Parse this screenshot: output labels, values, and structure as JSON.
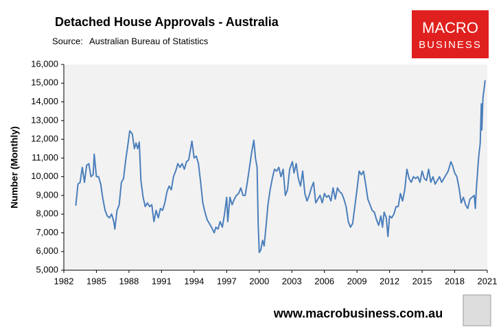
{
  "chart_data": {
    "type": "line",
    "title": "Detached House Approvals - Australia",
    "source_label": "Source:",
    "source": "Australian Bureau of Statistics",
    "brand": [
      "MACRO",
      "BUSINESS"
    ],
    "website": "www.macrobusiness.com.au",
    "y_label": "Number (Monthly)",
    "xlim": [
      1982,
      2021
    ],
    "xticks": [
      1982,
      1985,
      1988,
      1991,
      1994,
      1997,
      2000,
      2003,
      2006,
      2009,
      2012,
      2015,
      2018,
      2021
    ],
    "ylim": [
      5000,
      16000
    ],
    "yticks": [
      {
        "value": 5000,
        "label": "5,000"
      },
      {
        "value": 6000,
        "label": "6,000"
      },
      {
        "value": 7000,
        "label": "7,000"
      },
      {
        "value": 8000,
        "label": "8,000"
      },
      {
        "value": 9000,
        "label": "9,000"
      },
      {
        "value": 10000,
        "label": "10,000"
      },
      {
        "value": 11000,
        "label": "11,000"
      },
      {
        "value": 12000,
        "label": "12,000"
      },
      {
        "value": 13000,
        "label": "13,000"
      },
      {
        "value": 14000,
        "label": "14,000"
      },
      {
        "value": 15000,
        "label": "15,000"
      },
      {
        "value": 16000,
        "label": "16,000"
      }
    ],
    "grid": false,
    "x": [
      1983.1,
      1983.3,
      1983.5,
      1983.7,
      1983.9,
      1984.1,
      1984.3,
      1984.5,
      1984.7,
      1984.8,
      1985.0,
      1985.2,
      1985.4,
      1985.6,
      1985.8,
      1986.0,
      1986.2,
      1986.4,
      1986.6,
      1986.7,
      1986.9,
      1987.1,
      1987.3,
      1987.5,
      1987.7,
      1987.9,
      1988.07,
      1988.3,
      1988.5,
      1988.65,
      1988.8,
      1988.95,
      1989.1,
      1989.3,
      1989.5,
      1989.7,
      1989.9,
      1990.1,
      1990.3,
      1990.5,
      1990.7,
      1990.9,
      1991.1,
      1991.3,
      1991.5,
      1991.7,
      1991.9,
      1992.1,
      1992.3,
      1992.5,
      1992.7,
      1992.9,
      1993.1,
      1993.3,
      1993.5,
      1993.8,
      1994.0,
      1994.2,
      1994.4,
      1994.6,
      1994.8,
      1995.0,
      1995.2,
      1995.4,
      1995.6,
      1995.85,
      1996.0,
      1996.2,
      1996.4,
      1996.6,
      1996.8,
      1997.0,
      1997.1,
      1997.3,
      1997.5,
      1997.7,
      1997.9,
      1998.1,
      1998.3,
      1998.5,
      1998.7,
      1998.9,
      1999.1,
      1999.3,
      1999.5,
      1999.65,
      1999.8,
      1999.9,
      2000.0,
      2000.15,
      2000.3,
      2000.45,
      2000.6,
      2000.8,
      2001.0,
      2001.2,
      2001.4,
      2001.6,
      2001.8,
      2002.0,
      2002.2,
      2002.4,
      2002.6,
      2002.8,
      2003.05,
      2003.2,
      2003.4,
      2003.6,
      2003.8,
      2004.0,
      2004.2,
      2004.4,
      2004.6,
      2004.8,
      2005.0,
      2005.2,
      2005.4,
      2005.6,
      2005.8,
      2006.0,
      2006.2,
      2006.4,
      2006.6,
      2006.8,
      2007.0,
      2007.2,
      2007.4,
      2007.6,
      2007.8,
      2008.0,
      2008.2,
      2008.4,
      2008.6,
      2008.8,
      2009.0,
      2009.2,
      2009.4,
      2009.6,
      2009.8,
      2010.0,
      2010.2,
      2010.4,
      2010.6,
      2010.8,
      2011.0,
      2011.2,
      2011.35,
      2011.5,
      2011.7,
      2011.85,
      2012.0,
      2012.2,
      2012.4,
      2012.6,
      2012.8,
      2013.0,
      2013.2,
      2013.4,
      2013.6,
      2013.8,
      2014.0,
      2014.2,
      2014.4,
      2014.6,
      2014.8,
      2015.0,
      2015.2,
      2015.4,
      2015.6,
      2015.8,
      2016.0,
      2016.2,
      2016.4,
      2016.6,
      2016.8,
      2017.0,
      2017.2,
      2017.4,
      2017.65,
      2017.8,
      2018.0,
      2018.2,
      2018.4,
      2018.6,
      2018.8,
      2019.0,
      2019.2,
      2019.4,
      2019.6,
      2019.8,
      2019.9,
      2020.0,
      2020.2,
      2020.35,
      2020.45,
      2020.5,
      2020.6,
      2020.8
    ],
    "series": [
      {
        "name": "Detached house approvals",
        "color": "#4a7ebb",
        "values": [
          8450,
          9600,
          9700,
          10500,
          9700,
          10600,
          10700,
          10000,
          10100,
          11200,
          10000,
          10000,
          9600,
          8800,
          8200,
          7900,
          7800,
          8000,
          7600,
          7200,
          8200,
          8500,
          9700,
          9900,
          10900,
          11700,
          12450,
          12300,
          11500,
          11800,
          11500,
          11850,
          9800,
          8900,
          8400,
          8600,
          8400,
          8500,
          7600,
          8200,
          7800,
          8300,
          8200,
          8600,
          9200,
          9500,
          9300,
          10000,
          10300,
          10700,
          10500,
          10700,
          10400,
          10800,
          10900,
          11900,
          11000,
          11100,
          10700,
          9700,
          8600,
          8100,
          7700,
          7500,
          7300,
          7000,
          7300,
          7200,
          7600,
          7300,
          8000,
          8900,
          7600,
          8900,
          8500,
          8800,
          9000,
          9100,
          9400,
          9000,
          9000,
          9700,
          10500,
          11300,
          11950,
          11000,
          10500,
          7500,
          5950,
          6100,
          6600,
          6300,
          7200,
          8500,
          9300,
          9900,
          10400,
          10300,
          10500,
          10000,
          10400,
          9000,
          9300,
          10400,
          10800,
          10200,
          10700,
          9900,
          9500,
          10300,
          9100,
          8700,
          9000,
          9400,
          9700,
          8600,
          8800,
          9000,
          8600,
          9100,
          8900,
          9000,
          8700,
          9400,
          8800,
          9400,
          9200,
          9100,
          8800,
          8400,
          7600,
          7300,
          7500,
          8400,
          9300,
          10300,
          10100,
          10300,
          9600,
          8800,
          8500,
          8200,
          8100,
          7700,
          7400,
          7900,
          7300,
          8100,
          7800,
          6800,
          7900,
          7800,
          8000,
          8400,
          8400,
          9100,
          8700,
          9300,
          10400,
          9900,
          9700,
          10000,
          9900,
          10000,
          9700,
          10300,
          9900,
          9800,
          10400,
          9700,
          10000,
          9600,
          9800,
          10000,
          9700,
          9900,
          10100,
          10300,
          10800,
          10600,
          10200,
          10000,
          9400,
          8600,
          8900,
          8500,
          8300,
          8800,
          8900,
          9000,
          8300,
          9400,
          11000,
          11800,
          13900,
          12500,
          14200,
          15150
        ]
      }
    ]
  }
}
